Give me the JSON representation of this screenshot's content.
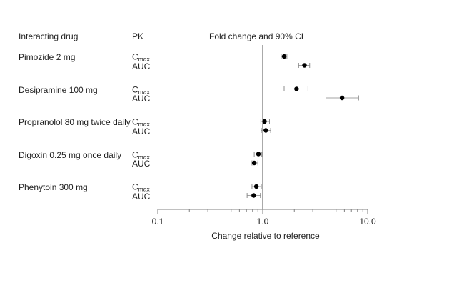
{
  "header": {
    "interacting_drug": "Interacting drug",
    "pk": "PK"
  },
  "colors": {
    "text": "#1f1f1f",
    "point": "#000000",
    "error_bar": "#a3a3a3",
    "error_bar_cap": "#8c8c8c",
    "axis": "#808080",
    "reference_line": "#555555"
  },
  "chart_data": {
    "type": "scatter",
    "subtype": "forest-plot",
    "title": "Fold change and 90% CI",
    "xlabel": "Change relative to reference",
    "xscale": "log10",
    "xlim": [
      0.1,
      10.0
    ],
    "x_ticks_major": [
      0.1,
      1.0,
      10.0
    ],
    "x_tick_labels": [
      "0.1",
      "1.0",
      "10.0"
    ],
    "x_ticks_minor": [
      0.2,
      0.3,
      0.4,
      0.5,
      0.6,
      0.7,
      0.8,
      0.9,
      2,
      3,
      4,
      5,
      6,
      7,
      8,
      9
    ],
    "reference_line_x": 1.0,
    "grid": false,
    "groups": [
      {
        "drug": "Pimozide 2 mg",
        "rows": [
          {
            "pk": {
              "base": "C",
              "sub": "max"
            },
            "estimate": 1.6,
            "ci_low": 1.5,
            "ci_high": 1.7
          },
          {
            "pk": {
              "base": "AUC",
              "sub": ""
            },
            "estimate": 2.5,
            "ci_low": 2.2,
            "ci_high": 2.8
          }
        ]
      },
      {
        "drug": "Desipramine 100 mg",
        "rows": [
          {
            "pk": {
              "base": "C",
              "sub": "max"
            },
            "estimate": 2.1,
            "ci_low": 1.6,
            "ci_high": 2.7
          },
          {
            "pk": {
              "base": "AUC",
              "sub": ""
            },
            "estimate": 5.7,
            "ci_low": 4.0,
            "ci_high": 8.2
          }
        ]
      },
      {
        "drug": "Propranolol 80 mg twice daily",
        "rows": [
          {
            "pk": {
              "base": "C",
              "sub": "max"
            },
            "estimate": 1.04,
            "ci_low": 0.96,
            "ci_high": 1.16
          },
          {
            "pk": {
              "base": "AUC",
              "sub": ""
            },
            "estimate": 1.07,
            "ci_low": 0.97,
            "ci_high": 1.19
          }
        ]
      },
      {
        "drug": "Digoxin 0.25 mg once daily",
        "rows": [
          {
            "pk": {
              "base": "C",
              "sub": "max"
            },
            "estimate": 0.91,
            "ci_low": 0.83,
            "ci_high": 0.98
          },
          {
            "pk": {
              "base": "AUC",
              "sub": ""
            },
            "estimate": 0.83,
            "ci_low": 0.79,
            "ci_high": 0.9
          }
        ]
      },
      {
        "drug": "Phenytoin 300 mg",
        "rows": [
          {
            "pk": {
              "base": "C",
              "sub": "max"
            },
            "estimate": 0.87,
            "ci_low": 0.79,
            "ci_high": 0.97
          },
          {
            "pk": {
              "base": "AUC",
              "sub": ""
            },
            "estimate": 0.82,
            "ci_low": 0.71,
            "ci_high": 0.95
          }
        ]
      }
    ]
  }
}
